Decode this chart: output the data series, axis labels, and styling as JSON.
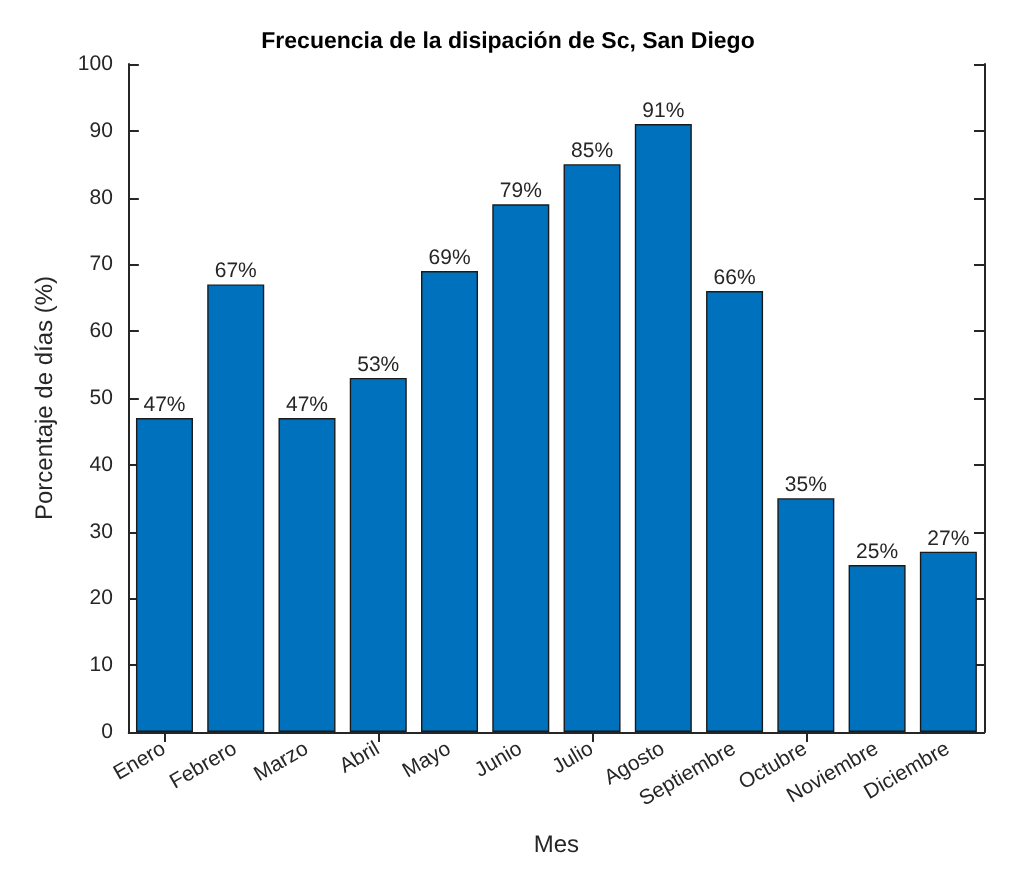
{
  "chart_data": {
    "type": "bar",
    "title": "Frecuencia de la disipación de Sc, San Diego",
    "xlabel": "Mes",
    "ylabel": "Porcentaje de días (%)",
    "categories": [
      "Enero",
      "Febrero",
      "Marzo",
      "Abril",
      "Mayo",
      "Junio",
      "Julio",
      "Agosto",
      "Septiembre",
      "Octubre",
      "Noviembre",
      "Diciembre"
    ],
    "values": [
      47,
      67,
      47,
      53,
      69,
      79,
      85,
      91,
      66,
      35,
      25,
      27
    ],
    "value_labels": [
      "47%",
      "67%",
      "47%",
      "53%",
      "69%",
      "79%",
      "85%",
      "91%",
      "66%",
      "35%",
      "25%",
      "27%"
    ],
    "color": "#0072bd",
    "ylim": [
      0,
      100
    ],
    "yticks": [
      0,
      10,
      20,
      30,
      40,
      50,
      60,
      70,
      80,
      90,
      100
    ],
    "grid": false
  }
}
